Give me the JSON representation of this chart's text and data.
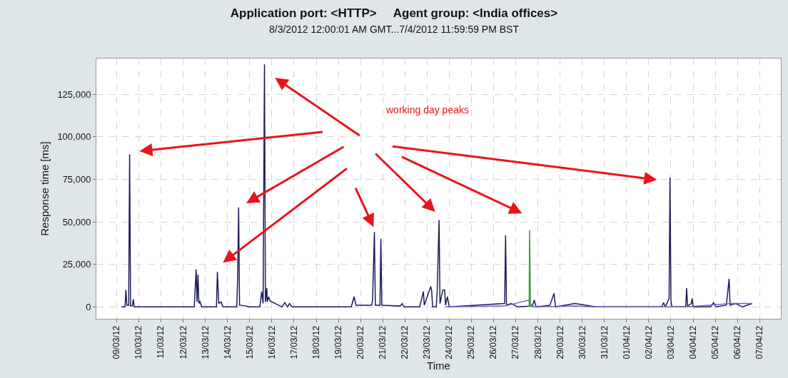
{
  "chart_data": {
    "type": "line",
    "title": "Application port: <HTTP>     Agent group: <India offices>",
    "subtitle": "8/3/2012 12:00:01 AM GMT...7/4/2012 11:59:59 PM BST",
    "xlabel": "Time",
    "ylabel": "Response time [ms]",
    "annotations": [
      "working day peaks"
    ],
    "series": [
      {
        "color": "#1b1b5a",
        "x": [
          "2012-03-09T05:00",
          "2012-03-09T09:00",
          "2012-03-09T10:00",
          "2012-03-09T11:00",
          "2012-03-09T13:00",
          "2012-03-09T14:00",
          "2012-03-09T15:00",
          "2012-03-09T17:00",
          "2012-03-09T18:00",
          "2012-03-09T19:00",
          "2012-03-12T12:00",
          "2012-03-12T14:00",
          "2012-03-12T15:00",
          "2012-03-12T16:00",
          "2012-03-12T17:00",
          "2012-03-12T18:00",
          "2012-03-12T20:00",
          "2012-03-13T12:00",
          "2012-03-13T13:00",
          "2012-03-13T14:30",
          "2012-03-13T17:00",
          "2012-03-13T19:00",
          "2012-03-14T10:00",
          "2012-03-14T11:00",
          "2012-03-14T12:00",
          "2012-03-14T13:00",
          "2012-03-14T21:00",
          "2012-03-14T22:00",
          "2012-03-15T11:00",
          "2012-03-15T13:00",
          "2012-03-15T14:30",
          "2012-03-15T16:00",
          "2012-03-15T17:00",
          "2012-03-15T18:30",
          "2012-03-15T19:00",
          "2012-03-15T20:30",
          "2012-03-15T22:00",
          "2012-03-16T11:00",
          "2012-03-16T14:00",
          "2012-03-16T17:00",
          "2012-03-16T19:00",
          "2012-03-16T22:00",
          "2012-03-19T14:00",
          "2012-03-19T17:00",
          "2012-03-19T19:00",
          "2012-03-20T12:00",
          "2012-03-20T13:00",
          "2012-03-20T15:00",
          "2012-03-20T16:00",
          "2012-03-20T21:00",
          "2012-03-20T22:00",
          "2012-03-20T23:00",
          "2012-03-21T19:00",
          "2012-03-21T21:00",
          "2012-03-21T23:00",
          "2012-03-22T16:00",
          "2012-03-22T20:00",
          "2012-03-22T21:00",
          "2012-03-23T04:00",
          "2012-03-23T05:00",
          "2012-03-23T06:00",
          "2012-03-23T10:00",
          "2012-03-23T11:00",
          "2012-03-23T13:00",
          "2012-03-23T14:00",
          "2012-03-23T17:00",
          "2012-03-23T19:00",
          "2012-03-23T20:00",
          "2012-03-23T22:00",
          "2012-03-24T00:00",
          "2012-03-26T12:00",
          "2012-03-26T13:00",
          "2012-03-26T14:00",
          "2012-03-26T19:00",
          "2012-03-27T02:00",
          "2012-03-27T18:00",
          "2012-03-27T20:00",
          "2012-03-27T22:00",
          "2012-03-28T13:00",
          "2012-03-28T17:30",
          "2012-03-28T19:00",
          "2012-03-29T16:00",
          "2012-03-30T15:00",
          "2012-04-02T14:00",
          "2012-04-02T16:00",
          "2012-04-02T18:00",
          "2012-04-02T22:00",
          "2012-04-02T23:00",
          "2012-04-03T00:00",
          "2012-04-03T01:00",
          "2012-04-03T16:00",
          "2012-04-03T17:00",
          "2012-04-03T18:00",
          "2012-04-03T22:00",
          "2012-04-03T23:00",
          "2012-04-04T00:00",
          "2012-04-04T19:00",
          "2012-04-04T22:00",
          "2012-04-05T01:00",
          "2012-04-05T12:00",
          "2012-04-05T15:00",
          "2012-04-05T16:00",
          "2012-04-05T22:00",
          "2012-04-06T05:30",
          "2012-04-06T16:00"
        ],
        "values": [
          0,
          0,
          10000,
          1000,
          1000,
          89600,
          500,
          500,
          4500,
          0,
          0,
          22000,
          3000,
          19000,
          2000,
          3500,
          0,
          0,
          20500,
          2000,
          3000,
          0,
          0,
          18000,
          58500,
          1000,
          500,
          0,
          0,
          9000,
          2000,
          142500,
          3000,
          11000,
          3000,
          6000,
          3500,
          0,
          2500,
          0,
          2000,
          0,
          0,
          6000,
          1000,
          1000,
          4000,
          44000,
          1000,
          1000,
          40000,
          1000,
          500,
          2000,
          0,
          0,
          9000,
          1000,
          12000,
          9500,
          0,
          0,
          10000,
          51000,
          2000,
          10000,
          10000,
          1000,
          6000,
          0,
          2000,
          42000,
          1000,
          2000,
          0,
          500,
          4000,
          0,
          1000,
          8000,
          0,
          2000,
          0,
          0,
          2500,
          0,
          5000,
          76000,
          4000,
          0,
          0,
          11000,
          500,
          2000,
          5000,
          0,
          0,
          2500,
          0,
          1000,
          16500,
          1000,
          2000,
          0,
          2000
        ]
      },
      {
        "color": "#6a62c8",
        "x": [
          "2012-03-23T20:00",
          "2012-03-26T12:00",
          "2012-03-27T14:00",
          "2012-03-27T18:00",
          "2012-03-29T16:00",
          "2012-03-30T12:00",
          "2012-04-03T18:00",
          "2012-04-05T16:00",
          "2012-04-06T16:00"
        ],
        "values": [
          0,
          500,
          4000,
          0,
          500,
          0,
          0,
          2000,
          2000
        ]
      },
      {
        "color": "#3c9a3c",
        "x": [
          "2012-03-27T14:30",
          "2012-03-27T15:00",
          "2012-03-27T16:00"
        ],
        "values": [
          0,
          45000,
          0
        ]
      }
    ],
    "xlim": [
      "2012-03-08T02:00",
      "2012-04-07T23:00"
    ],
    "xticks": [
      {
        "value": "2012-03-09",
        "label": "09/03/12"
      },
      {
        "value": "2012-03-10",
        "label": "10/03/12"
      },
      {
        "value": "2012-03-11",
        "label": "11/03/12"
      },
      {
        "value": "2012-03-12",
        "label": "12/03/12"
      },
      {
        "value": "2012-03-13",
        "label": "13/03/12"
      },
      {
        "value": "2012-03-14",
        "label": "14/03/12"
      },
      {
        "value": "2012-03-15",
        "label": "15/03/12"
      },
      {
        "value": "2012-03-16",
        "label": "16/03/12"
      },
      {
        "value": "2012-03-17",
        "label": "17/03/12"
      },
      {
        "value": "2012-03-18",
        "label": "18/03/12"
      },
      {
        "value": "2012-03-19",
        "label": "19/03/12"
      },
      {
        "value": "2012-03-20",
        "label": "20/03/12"
      },
      {
        "value": "2012-03-21",
        "label": "21/03/12"
      },
      {
        "value": "2012-03-22",
        "label": "22/03/12"
      },
      {
        "value": "2012-03-23",
        "label": "23/03/12"
      },
      {
        "value": "2012-03-24",
        "label": "24/03/12"
      },
      {
        "value": "2012-03-25",
        "label": "25/03/12"
      },
      {
        "value": "2012-03-26",
        "label": "26/03/12"
      },
      {
        "value": "2012-03-27",
        "label": "27/03/12"
      },
      {
        "value": "2012-03-28",
        "label": "28/03/12"
      },
      {
        "value": "2012-03-29",
        "label": "29/03/12"
      },
      {
        "value": "2012-03-30",
        "label": "30/03/12"
      },
      {
        "value": "2012-03-31",
        "label": "31/03/12"
      },
      {
        "value": "2012-04-01",
        "label": "01/04/12"
      },
      {
        "value": "2012-04-02",
        "label": "02/04/12"
      },
      {
        "value": "2012-04-03",
        "label": "03/04/12"
      },
      {
        "value": "2012-04-04",
        "label": "04/04/12"
      },
      {
        "value": "2012-04-05",
        "label": "05/04/12"
      },
      {
        "value": "2012-04-06",
        "label": "06/04/12"
      },
      {
        "value": "2012-04-07",
        "label": "07/04/12"
      }
    ],
    "ylim": [
      -7000,
      146000
    ],
    "yticks": [
      0,
      {
        "value": 25000,
        "label": "25,000"
      },
      {
        "value": 50000,
        "label": "50,000"
      },
      {
        "value": 75000,
        "label": "75,000"
      },
      {
        "value": 100000,
        "label": "100,000"
      },
      {
        "value": 125000,
        "label": "125,000"
      }
    ],
    "grid": true,
    "marker": "none",
    "line_style": "solid"
  }
}
